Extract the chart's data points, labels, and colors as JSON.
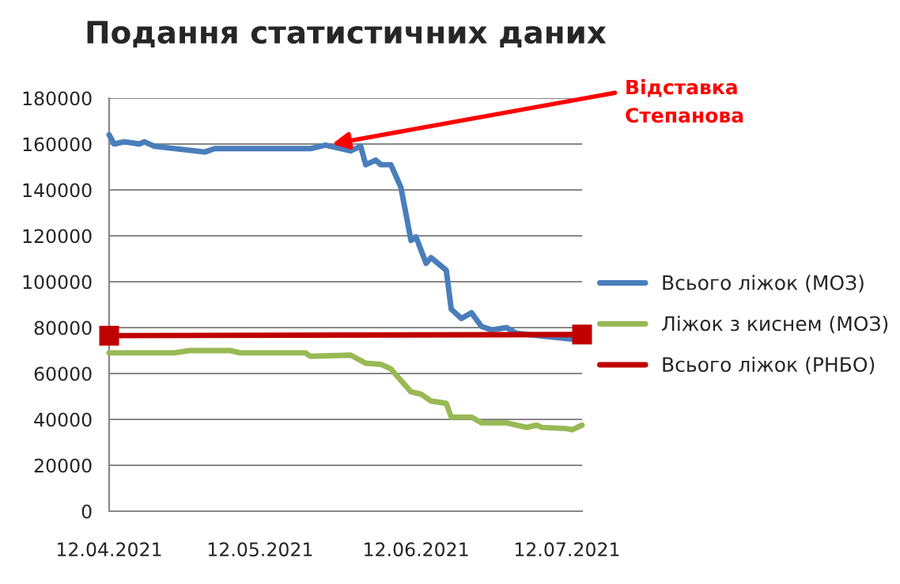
{
  "chart_data": {
    "type": "line",
    "title": "Подання статистичних даних",
    "series": [
      {
        "name": "Всього ліжок (МОЗ)",
        "color": "#4a7ebb",
        "x": [
          "2021-04-12",
          "2021-04-13",
          "2021-04-15",
          "2021-04-18",
          "2021-04-19",
          "2021-04-21",
          "2021-05-01",
          "2021-05-03",
          "2021-05-22",
          "2021-05-25",
          "2021-05-30",
          "2021-06-01",
          "2021-06-02",
          "2021-06-04",
          "2021-06-05",
          "2021-06-07",
          "2021-06-09",
          "2021-06-11",
          "2021-06-12",
          "2021-06-14",
          "2021-06-15",
          "2021-06-18",
          "2021-06-19",
          "2021-06-21",
          "2021-06-23",
          "2021-06-25",
          "2021-06-27",
          "2021-06-30",
          "2021-07-02",
          "2021-07-13",
          "2021-07-14"
        ],
        "values": [
          164000,
          160000,
          161000,
          160000,
          161000,
          159000,
          156500,
          158000,
          158000,
          159500,
          157000,
          159000,
          151000,
          153000,
          151000,
          151000,
          141000,
          118000,
          119500,
          108000,
          110500,
          105000,
          88000,
          84000,
          86500,
          80500,
          79000,
          80000,
          77500,
          75000,
          75500
        ]
      },
      {
        "name": "Ліжок з киснем (МОЗ)",
        "color": "#98b954",
        "x": [
          "2021-04-12",
          "2021-04-25",
          "2021-04-28",
          "2021-05-06",
          "2021-05-08",
          "2021-05-21",
          "2021-05-22",
          "2021-05-30",
          "2021-06-02",
          "2021-06-05",
          "2021-06-07",
          "2021-06-11",
          "2021-06-13",
          "2021-06-15",
          "2021-06-18",
          "2021-06-19",
          "2021-06-23",
          "2021-06-25",
          "2021-06-30",
          "2021-07-04",
          "2021-07-06",
          "2021-07-07",
          "2021-07-12",
          "2021-07-13",
          "2021-07-15"
        ],
        "values": [
          69000,
          69000,
          70000,
          70000,
          69000,
          69000,
          67500,
          68000,
          64500,
          64000,
          62000,
          52000,
          51000,
          48000,
          47000,
          41000,
          41000,
          38500,
          38500,
          36500,
          37500,
          36500,
          36000,
          35500,
          37500
        ]
      },
      {
        "name": "Всього ліжок (РНБО)",
        "color": "#c00000",
        "marker": "square",
        "x": [
          "2021-04-12",
          "2021-07-15"
        ],
        "values": [
          76500,
          77000
        ]
      }
    ],
    "xlim": [
      "2021-04-12",
      "2021-07-15"
    ],
    "xticks": [
      {
        "value": "2021-04-12",
        "label": "12.04.2021"
      },
      {
        "value": "2021-05-12",
        "label": "12.05.2021"
      },
      {
        "value": "2021-06-12",
        "label": "12.06.2021"
      },
      {
        "value": "2021-07-12",
        "label": "12.07.2021"
      }
    ],
    "ylim": [
      0,
      180000
    ],
    "yticks": [
      0,
      20000,
      40000,
      60000,
      80000,
      100000,
      120000,
      140000,
      160000,
      180000
    ],
    "grid": "y",
    "legend": "right",
    "annotations": [
      {
        "text": "Відставка\nСтепанова",
        "x": "2021-05-25",
        "y": 159500
      }
    ]
  }
}
